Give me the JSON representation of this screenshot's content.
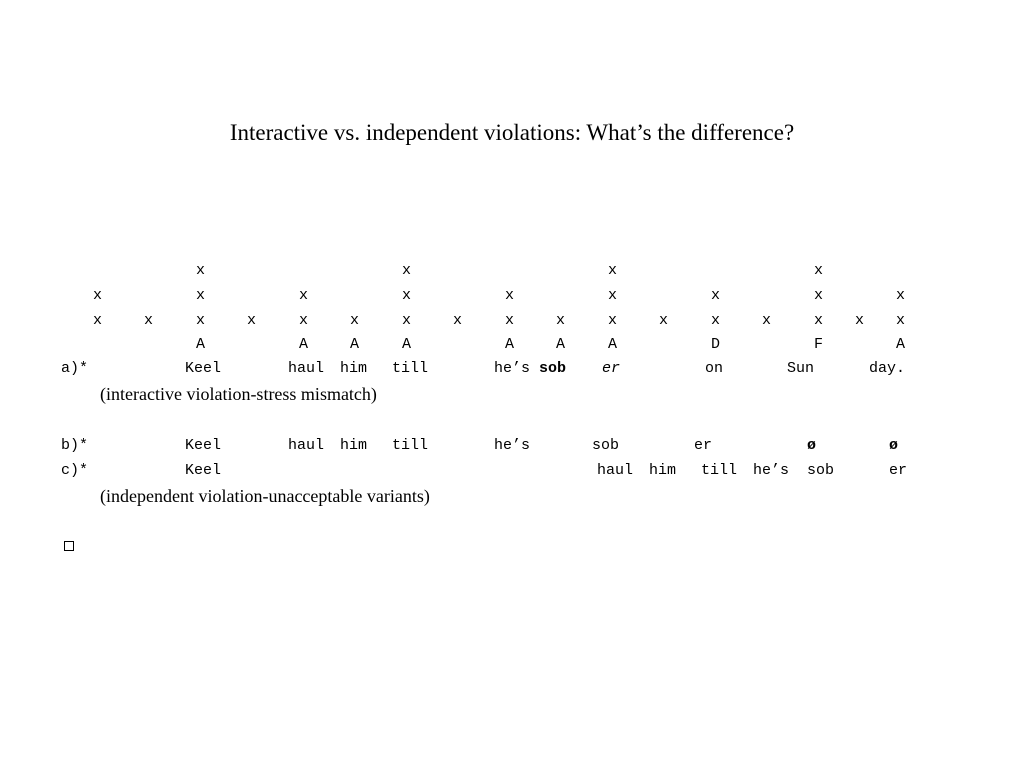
{
  "title": "Interactive vs. independent violations: What’s the difference?",
  "grid": {
    "row1": "x",
    "row2": "x",
    "row3": "x",
    "row4": [
      "A",
      "A",
      "A",
      "A",
      "A",
      "A",
      "A",
      "D",
      "F",
      "A"
    ]
  },
  "example_a": {
    "label": "a)*",
    "words": [
      "Keel",
      "haul",
      "him",
      "till",
      "he’s",
      "sob",
      "er",
      "on",
      "Sun",
      "day."
    ],
    "note": "(interactive violation-stress mismatch)"
  },
  "example_b": {
    "label": "b)*",
    "words": [
      "Keel",
      "haul",
      "him",
      "till",
      "he’s",
      "sob",
      "er",
      "ø",
      "ø"
    ]
  },
  "example_c": {
    "label": "c)*",
    "words": [
      "Keel",
      "haul",
      "him",
      "till",
      "he’s",
      "sob",
      "er"
    ],
    "note": "(independent violation-unacceptable variants)"
  }
}
